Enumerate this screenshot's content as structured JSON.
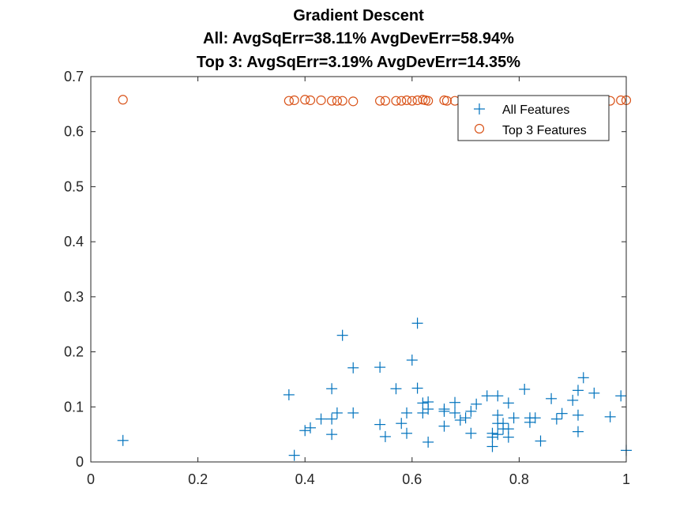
{
  "chart_data": {
    "type": "scatter",
    "title": [
      "Gradient Descent",
      "All: AvgSqErr=38.11% AvgDevErr=58.94%",
      "Top 3: AvgSqErr=3.19% AvgDevErr=14.35%"
    ],
    "xlabel": "",
    "ylabel": "",
    "xlim": [
      0,
      1
    ],
    "ylim": [
      0,
      0.7
    ],
    "xticks": [
      0,
      0.2,
      0.4,
      0.6,
      0.8,
      1
    ],
    "xtick_labels": [
      "0",
      "0.2",
      "0.4",
      "0.6",
      "0.8",
      "1"
    ],
    "yticks": [
      0,
      0.1,
      0.2,
      0.3,
      0.4,
      0.5,
      0.6,
      0.7
    ],
    "ytick_labels": [
      "0",
      "0.1",
      "0.2",
      "0.3",
      "0.4",
      "0.5",
      "0.6",
      "0.7"
    ],
    "grid": false,
    "legend_position": "top-right",
    "series": [
      {
        "name": "All Features",
        "marker": "plus",
        "color": "#0072BD",
        "points": [
          [
            0.06,
            0.039
          ],
          [
            0.37,
            0.122
          ],
          [
            0.38,
            0.012
          ],
          [
            0.4,
            0.057
          ],
          [
            0.41,
            0.062
          ],
          [
            0.43,
            0.078
          ],
          [
            0.45,
            0.133
          ],
          [
            0.45,
            0.078
          ],
          [
            0.45,
            0.05
          ],
          [
            0.46,
            0.089
          ],
          [
            0.47,
            0.23
          ],
          [
            0.49,
            0.171
          ],
          [
            0.49,
            0.089
          ],
          [
            0.54,
            0.172
          ],
          [
            0.54,
            0.068
          ],
          [
            0.55,
            0.046
          ],
          [
            0.57,
            0.133
          ],
          [
            0.58,
            0.07
          ],
          [
            0.59,
            0.089
          ],
          [
            0.59,
            0.052
          ],
          [
            0.6,
            0.185
          ],
          [
            0.61,
            0.252
          ],
          [
            0.61,
            0.134
          ],
          [
            0.62,
            0.107
          ],
          [
            0.62,
            0.089
          ],
          [
            0.63,
            0.109
          ],
          [
            0.63,
            0.096
          ],
          [
            0.63,
            0.036
          ],
          [
            0.66,
            0.096
          ],
          [
            0.66,
            0.092
          ],
          [
            0.66,
            0.065
          ],
          [
            0.68,
            0.108
          ],
          [
            0.68,
            0.089
          ],
          [
            0.69,
            0.076
          ],
          [
            0.7,
            0.08
          ],
          [
            0.71,
            0.092
          ],
          [
            0.71,
            0.052
          ],
          [
            0.72,
            0.105
          ],
          [
            0.74,
            0.12
          ],
          [
            0.75,
            0.052
          ],
          [
            0.75,
            0.028
          ],
          [
            0.75,
            0.045
          ],
          [
            0.76,
            0.12
          ],
          [
            0.76,
            0.085
          ],
          [
            0.76,
            0.07
          ],
          [
            0.76,
            0.05
          ],
          [
            0.77,
            0.06
          ],
          [
            0.77,
            0.07
          ],
          [
            0.78,
            0.06
          ],
          [
            0.78,
            0.045
          ],
          [
            0.78,
            0.107
          ],
          [
            0.79,
            0.08
          ],
          [
            0.81,
            0.132
          ],
          [
            0.82,
            0.072
          ],
          [
            0.82,
            0.08
          ],
          [
            0.83,
            0.08
          ],
          [
            0.84,
            0.038
          ],
          [
            0.86,
            0.115
          ],
          [
            0.87,
            0.078
          ],
          [
            0.88,
            0.088
          ],
          [
            0.9,
            0.112
          ],
          [
            0.91,
            0.13
          ],
          [
            0.91,
            0.085
          ],
          [
            0.91,
            0.055
          ],
          [
            0.92,
            0.153
          ],
          [
            0.94,
            0.125
          ],
          [
            0.97,
            0.082
          ],
          [
            0.99,
            0.12
          ],
          [
            1.0,
            0.021
          ]
        ]
      },
      {
        "name": "Top 3 Features",
        "marker": "circle",
        "color": "#D95319",
        "points": [
          [
            0.06,
            0.658
          ],
          [
            0.37,
            0.656
          ],
          [
            0.38,
            0.657
          ],
          [
            0.4,
            0.658
          ],
          [
            0.41,
            0.657
          ],
          [
            0.43,
            0.657
          ],
          [
            0.45,
            0.656
          ],
          [
            0.46,
            0.656
          ],
          [
            0.47,
            0.656
          ],
          [
            0.49,
            0.655
          ],
          [
            0.54,
            0.656
          ],
          [
            0.55,
            0.656
          ],
          [
            0.57,
            0.656
          ],
          [
            0.58,
            0.656
          ],
          [
            0.59,
            0.657
          ],
          [
            0.6,
            0.656
          ],
          [
            0.61,
            0.657
          ],
          [
            0.62,
            0.658
          ],
          [
            0.625,
            0.657
          ],
          [
            0.63,
            0.656
          ],
          [
            0.66,
            0.657
          ],
          [
            0.665,
            0.656
          ],
          [
            0.68,
            0.656
          ],
          [
            0.7,
            0.656
          ],
          [
            0.71,
            0.657
          ],
          [
            0.72,
            0.656
          ],
          [
            0.74,
            0.657
          ],
          [
            0.75,
            0.656
          ],
          [
            0.76,
            0.657
          ],
          [
            0.77,
            0.656
          ],
          [
            0.78,
            0.656
          ],
          [
            0.8,
            0.656
          ],
          [
            0.81,
            0.657
          ],
          [
            0.82,
            0.656
          ],
          [
            0.83,
            0.656
          ],
          [
            0.84,
            0.656
          ],
          [
            0.86,
            0.656
          ],
          [
            0.87,
            0.657
          ],
          [
            0.88,
            0.656
          ],
          [
            0.9,
            0.656
          ],
          [
            0.91,
            0.657
          ],
          [
            0.92,
            0.656
          ],
          [
            0.94,
            0.656
          ],
          [
            0.97,
            0.656
          ],
          [
            0.99,
            0.657
          ],
          [
            1.0,
            0.657
          ]
        ]
      }
    ]
  }
}
